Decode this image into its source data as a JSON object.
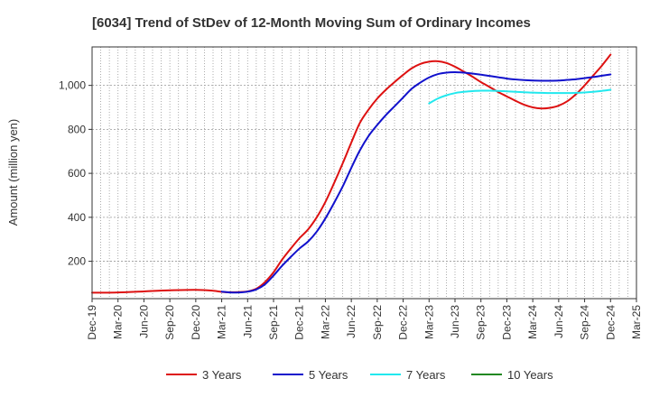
{
  "chart_data": {
    "type": "line",
    "title": "[6034]  Trend of StDev of 12-Month Moving Sum of Ordinary Incomes",
    "xlabel": "",
    "ylabel": "Amount (million yen)",
    "ylim": [
      30,
      1175
    ],
    "yticks": [
      200,
      400,
      600,
      800,
      1000
    ],
    "ytick_labels": [
      "200",
      "400",
      "600",
      "800",
      "1,000"
    ],
    "x_start": "Dec-19",
    "x_months": 63,
    "xtick_labels": [
      "Dec-19",
      "Mar-20",
      "Jun-20",
      "Sep-20",
      "Dec-20",
      "Mar-21",
      "Jun-21",
      "Sep-21",
      "Dec-21",
      "Mar-22",
      "Jun-22",
      "Sep-22",
      "Dec-22",
      "Mar-23",
      "Jun-23",
      "Sep-23",
      "Dec-23",
      "Mar-24",
      "Jun-24",
      "Sep-24",
      "Dec-24",
      "Mar-25"
    ],
    "grid": true,
    "legend_position": "bottom",
    "series": [
      {
        "name": "3 Years",
        "color": "#dd1111",
        "points": [
          [
            0,
            57
          ],
          [
            3,
            58
          ],
          [
            6,
            63
          ],
          [
            9,
            68
          ],
          [
            12,
            70
          ],
          [
            14,
            66
          ],
          [
            15,
            61
          ],
          [
            16,
            59
          ],
          [
            17,
            60
          ],
          [
            18,
            63
          ],
          [
            19,
            75
          ],
          [
            20,
            105
          ],
          [
            21,
            150
          ],
          [
            22,
            208
          ],
          [
            23,
            258
          ],
          [
            24,
            305
          ],
          [
            25,
            345
          ],
          [
            26,
            400
          ],
          [
            27,
            470
          ],
          [
            28,
            555
          ],
          [
            29,
            645
          ],
          [
            30,
            740
          ],
          [
            31,
            830
          ],
          [
            32,
            890
          ],
          [
            33,
            940
          ],
          [
            34,
            980
          ],
          [
            35,
            1015
          ],
          [
            36,
            1048
          ],
          [
            37,
            1078
          ],
          [
            38,
            1098
          ],
          [
            39,
            1108
          ],
          [
            40,
            1110
          ],
          [
            41,
            1102
          ],
          [
            42,
            1085
          ],
          [
            43,
            1063
          ],
          [
            44,
            1040
          ],
          [
            45,
            1015
          ],
          [
            46,
            993
          ],
          [
            47,
            970
          ],
          [
            48,
            950
          ],
          [
            49,
            930
          ],
          [
            50,
            912
          ],
          [
            51,
            900
          ],
          [
            52,
            895
          ],
          [
            53,
            898
          ],
          [
            54,
            908
          ],
          [
            55,
            928
          ],
          [
            56,
            960
          ],
          [
            57,
            1000
          ],
          [
            58,
            1045
          ],
          [
            59,
            1090
          ],
          [
            60,
            1140
          ]
        ]
      },
      {
        "name": "5 Years",
        "color": "#1111cc",
        "points": [
          [
            15,
            62
          ],
          [
            16,
            58
          ],
          [
            17,
            58
          ],
          [
            18,
            62
          ],
          [
            19,
            72
          ],
          [
            20,
            95
          ],
          [
            21,
            135
          ],
          [
            22,
            180
          ],
          [
            23,
            220
          ],
          [
            24,
            258
          ],
          [
            25,
            290
          ],
          [
            26,
            335
          ],
          [
            27,
            395
          ],
          [
            28,
            465
          ],
          [
            29,
            540
          ],
          [
            30,
            625
          ],
          [
            31,
            705
          ],
          [
            32,
            770
          ],
          [
            33,
            820
          ],
          [
            34,
            865
          ],
          [
            35,
            905
          ],
          [
            36,
            945
          ],
          [
            37,
            985
          ],
          [
            38,
            1013
          ],
          [
            39,
            1036
          ],
          [
            40,
            1051
          ],
          [
            41,
            1058
          ],
          [
            42,
            1060
          ],
          [
            43,
            1058
          ],
          [
            44,
            1054
          ],
          [
            45,
            1049
          ],
          [
            46,
            1043
          ],
          [
            47,
            1037
          ],
          [
            48,
            1031
          ],
          [
            49,
            1027
          ],
          [
            50,
            1024
          ],
          [
            51,
            1022
          ],
          [
            52,
            1021
          ],
          [
            53,
            1021
          ],
          [
            54,
            1022
          ],
          [
            55,
            1025
          ],
          [
            56,
            1028
          ],
          [
            57,
            1033
          ],
          [
            58,
            1038
          ],
          [
            59,
            1044
          ],
          [
            60,
            1050
          ]
        ]
      },
      {
        "name": "7 Years",
        "color": "#22e8ee",
        "points": [
          [
            39,
            918
          ],
          [
            40,
            940
          ],
          [
            41,
            955
          ],
          [
            42,
            965
          ],
          [
            43,
            971
          ],
          [
            44,
            974
          ],
          [
            45,
            976
          ],
          [
            46,
            976
          ],
          [
            47,
            975
          ],
          [
            48,
            973
          ],
          [
            49,
            971
          ],
          [
            50,
            969
          ],
          [
            51,
            967
          ],
          [
            52,
            966
          ],
          [
            53,
            965
          ],
          [
            54,
            965
          ],
          [
            55,
            965
          ],
          [
            56,
            966
          ],
          [
            57,
            968
          ],
          [
            58,
            971
          ],
          [
            59,
            975
          ],
          [
            60,
            980
          ]
        ]
      },
      {
        "name": "10 Years",
        "color": "#228822",
        "points": []
      }
    ]
  }
}
